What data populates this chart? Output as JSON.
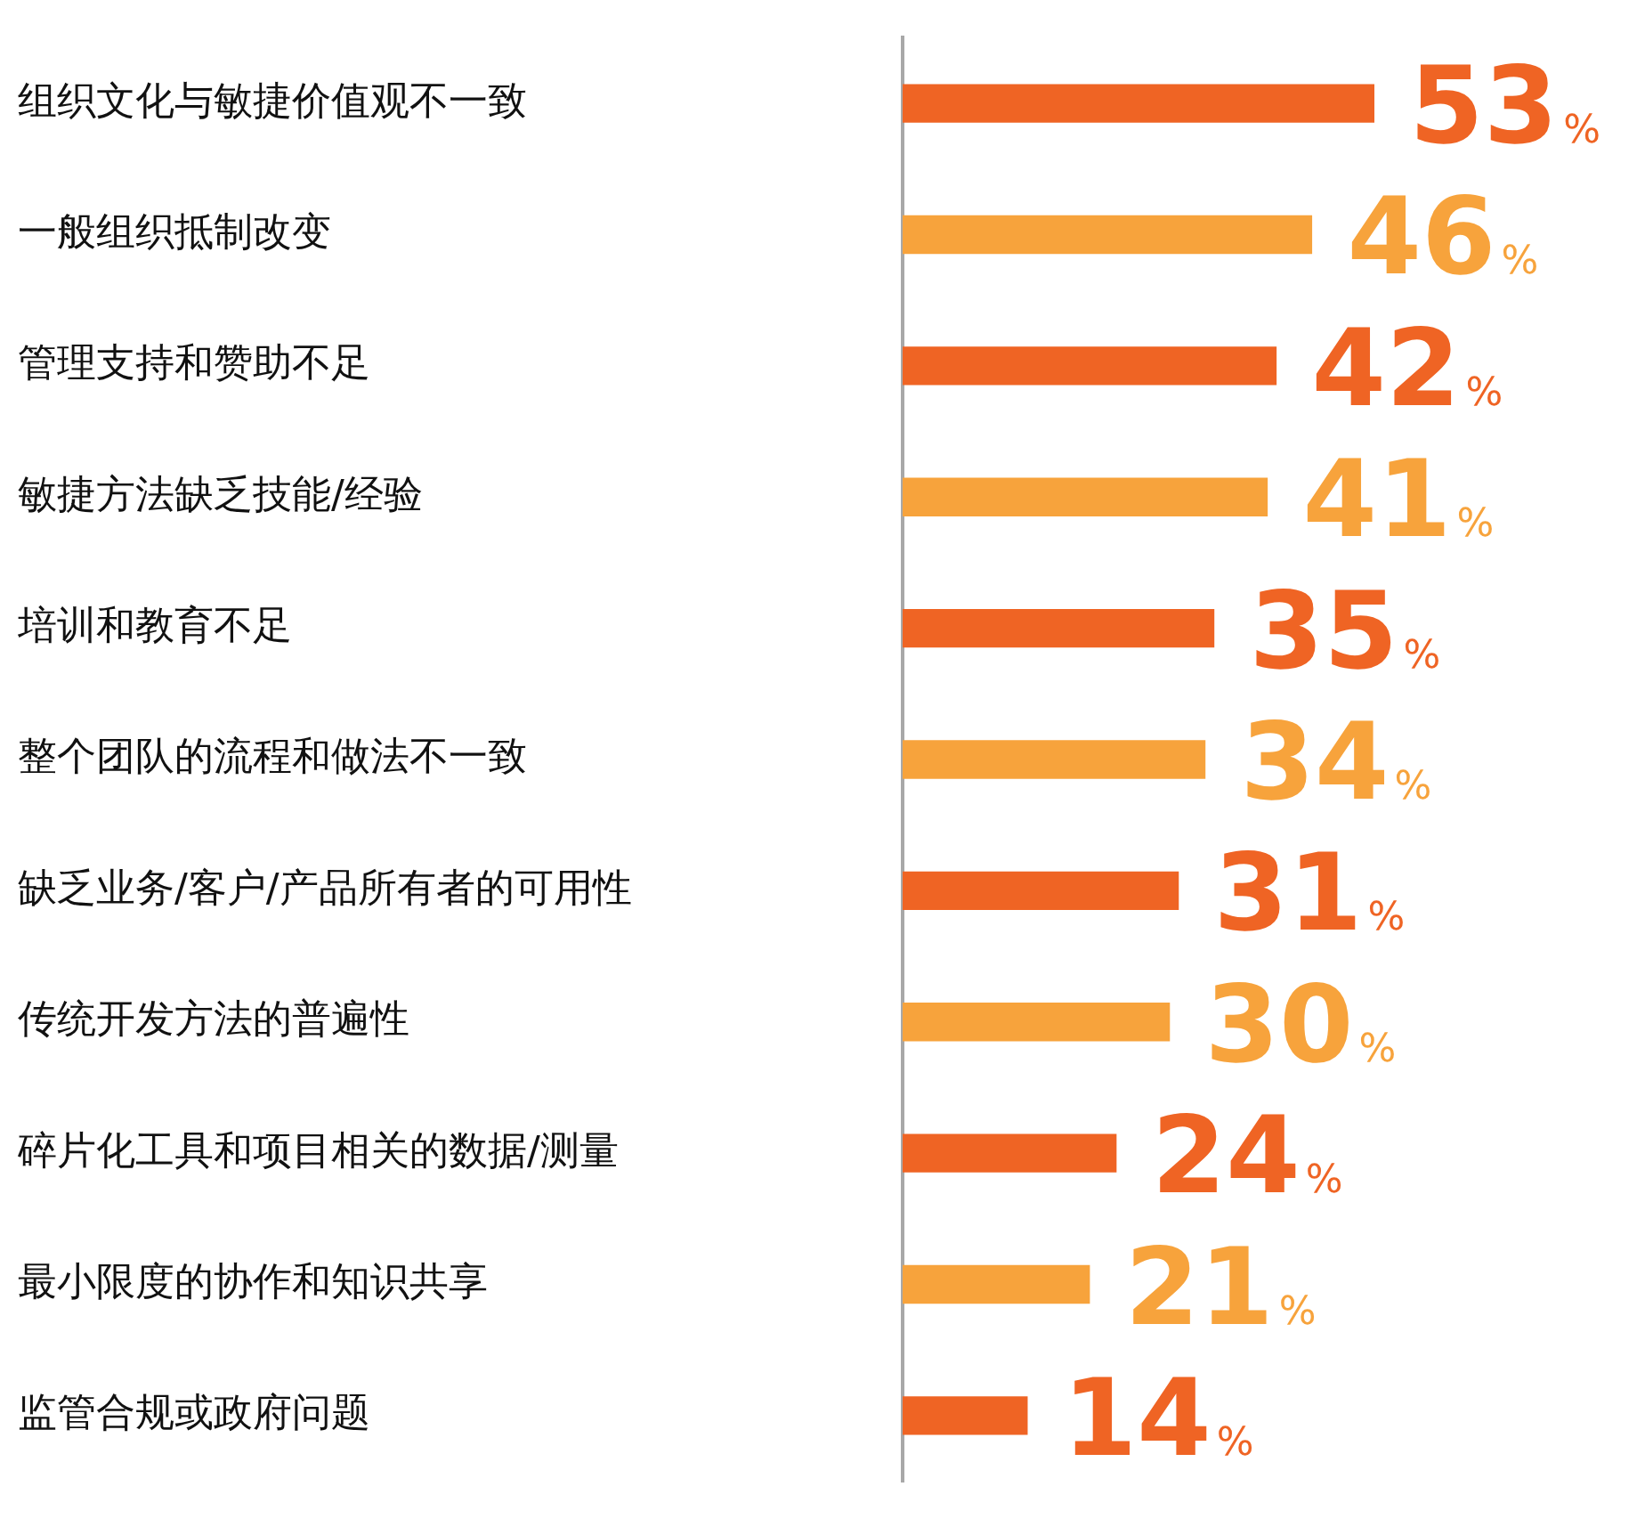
{
  "chart_data": {
    "type": "bar",
    "orientation": "horizontal",
    "categories": [
      "组织文化与敏捷价值观不一致",
      "一般组织抵制改变",
      "管理支持和赞助不足",
      "敏捷方法缺乏技能/经验",
      "培训和教育不足",
      "整个团队的流程和做法不一致",
      "缺乏业务/客户/产品所有者的可用性",
      "传统开发方法的普遍性",
      "碎片化工具和项目相关的数据/测量",
      "最小限度的协作和知识共享",
      "监管合规或政府问题"
    ],
    "values": [
      53,
      46,
      42,
      41,
      35,
      34,
      31,
      30,
      24,
      21,
      14
    ],
    "colors": [
      "#ef6424",
      "#f7a33c",
      "#ef6424",
      "#f7a33c",
      "#ef6424",
      "#f7a33c",
      "#ef6424",
      "#f7a33c",
      "#ef6424",
      "#f7a33c",
      "#ef6424"
    ],
    "value_labels": [
      "53%",
      "46%",
      "42%",
      "41%",
      "35%",
      "34%",
      "31%",
      "30%",
      "24%",
      "21%",
      "14%"
    ],
    "grid": false,
    "legend": false
  }
}
